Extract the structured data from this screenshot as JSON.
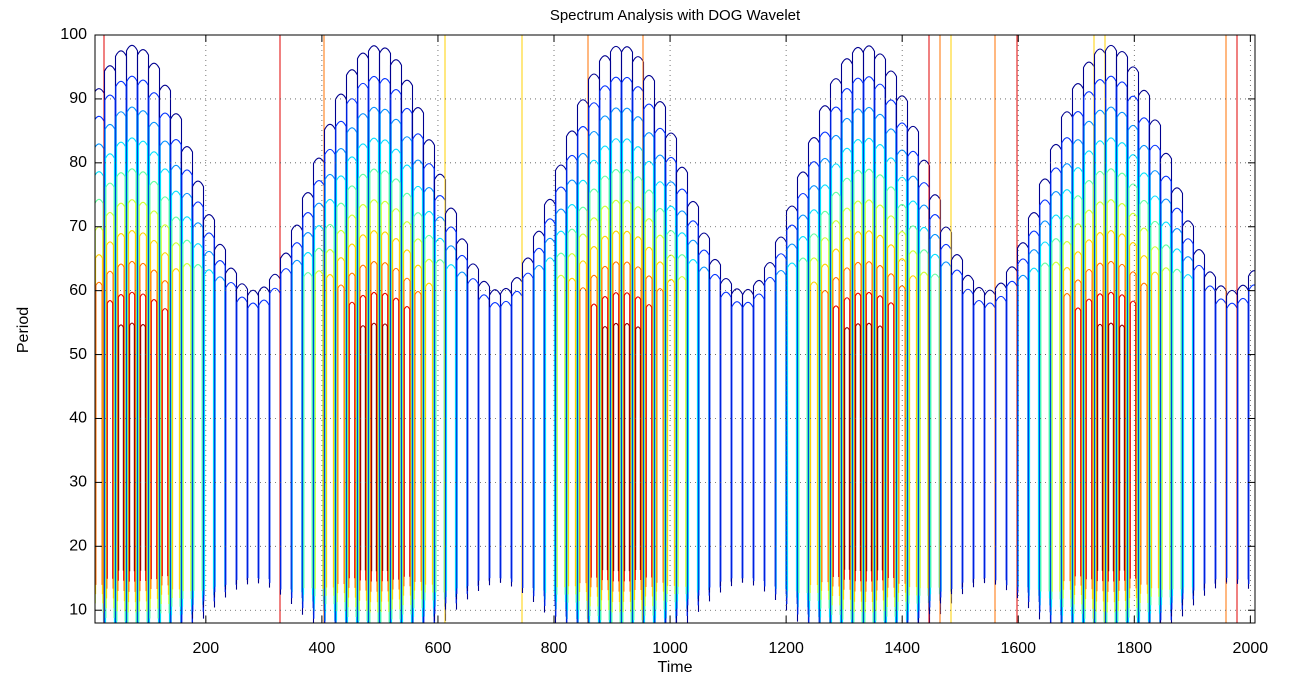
{
  "chart_data": {
    "type": "contour",
    "title": "Spectrum Analysis with DOG Wavelet",
    "x_label": "Time",
    "y_label": "Period",
    "xlim": [
      9,
      2008
    ],
    "ylim": [
      8,
      100
    ],
    "xticks": [
      200,
      400,
      600,
      800,
      1000,
      1200,
      1400,
      1600,
      1800,
      2000
    ],
    "yticks": [
      10,
      20,
      30,
      40,
      50,
      60,
      70,
      80,
      90,
      100
    ],
    "grid": true
  }
}
